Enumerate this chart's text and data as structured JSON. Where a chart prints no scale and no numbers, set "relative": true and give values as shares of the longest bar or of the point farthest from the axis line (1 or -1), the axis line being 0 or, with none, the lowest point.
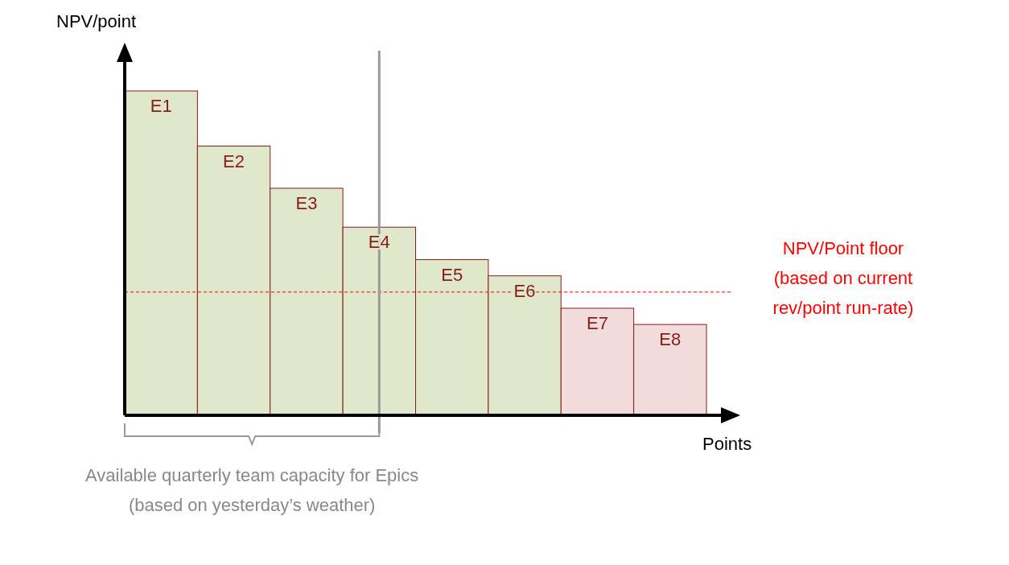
{
  "chart_data": {
    "type": "bar",
    "relative": true,
    "xlabel": "Points",
    "ylabel": "NPV/point",
    "categories": [
      "E1",
      "E2",
      "E3",
      "E4",
      "E5",
      "E6",
      "E7",
      "E8"
    ],
    "values": [
      1,
      0.83,
      0.7,
      0.58,
      0.48,
      0.43,
      0.33,
      0.28
    ],
    "colors": [
      "#dfe8cb",
      "#dfe8cb",
      "#dfe8cb",
      "#dfe8cb",
      "#dfe8cb",
      "#dfe8cb",
      "#f2dcdb",
      "#f2dcdb"
    ],
    "ref_lines": [
      {
        "axis": "y",
        "value": 0.38,
        "label": "NPV/Point floor (based on current rev/point run-rate)",
        "color": "#ff0000",
        "line_style": "dashed"
      },
      {
        "axis": "x",
        "value": "E4",
        "label": null,
        "color": "#999999",
        "line_style": "solid"
      }
    ],
    "annotations": [
      "Available quarterly team capacity for Epics (based on yesterday’s weather)"
    ]
  }
}
